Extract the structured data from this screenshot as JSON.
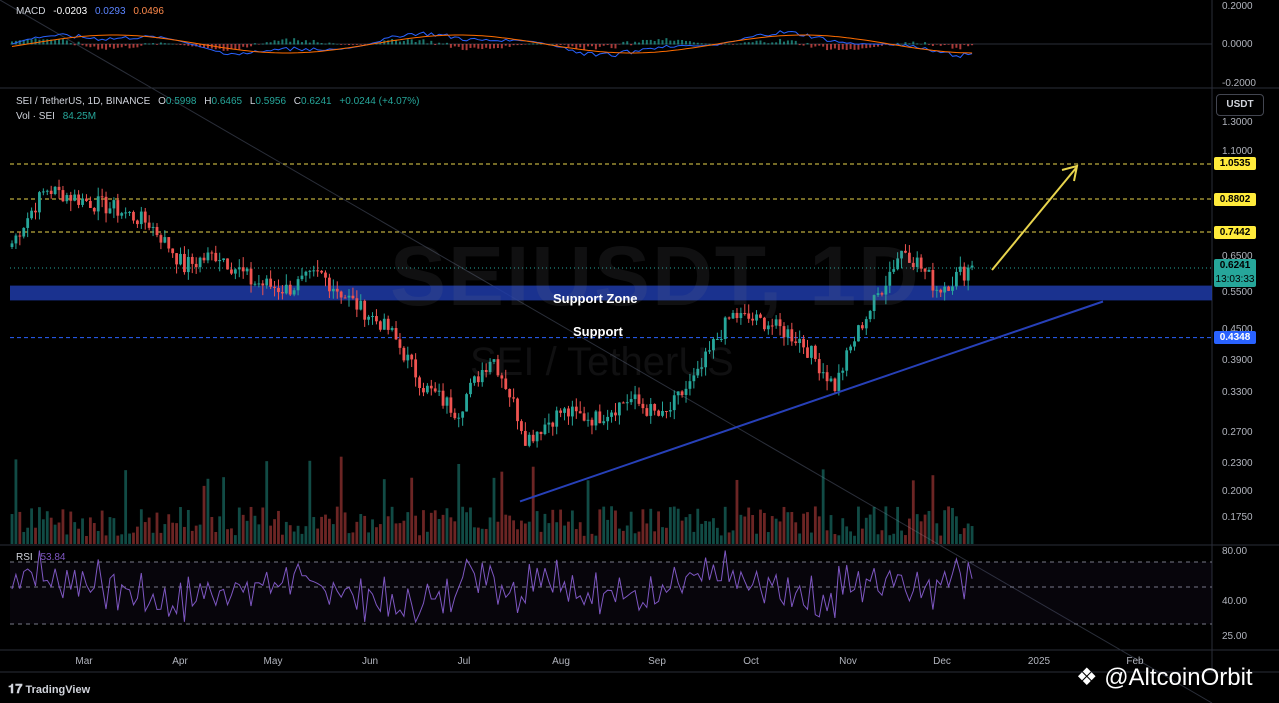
{
  "macd": {
    "name": "MACD",
    "v1": "-0.0203",
    "v2": "0.0293",
    "v3": "0.0496",
    "axis": [
      "0.2000",
      "0.0000",
      "-0.2000"
    ]
  },
  "header": {
    "symbol": "SEI / TetherUS, 1D, BINANCE",
    "o_label": "O",
    "o": "0.5998",
    "h_label": "H",
    "h": "0.6465",
    "l_label": "L",
    "l": "0.5956",
    "c_label": "C",
    "c": "0.6241",
    "change": "+0.0244 (+4.07%)",
    "vol_label": "Vol · SEI",
    "vol": "84.25M"
  },
  "currency_button": "USDT",
  "watermark": {
    "ticker": "SEIUSDT, 1D",
    "pair": "SEI / TetherUS"
  },
  "price_axis": [
    "1.3000",
    "1.1000",
    "0.6500",
    "0.5500",
    "0.4500",
    "0.3900",
    "0.3300",
    "0.2700",
    "0.2300",
    "0.2000",
    "0.1750"
  ],
  "levels": {
    "l1": "1.0535",
    "l2": "0.8802",
    "l3": "0.7442",
    "current": "0.6241",
    "countdown": "13:03:33",
    "support": "0.4348"
  },
  "annotations": {
    "zone": "Support Zone",
    "support": "Support"
  },
  "rsi": {
    "name": "RSI",
    "value": "53.84",
    "axis": [
      "80.00",
      "40.00",
      "25.00"
    ]
  },
  "time_axis": [
    "Mar",
    "Apr",
    "May",
    "Jun",
    "Jul",
    "Aug",
    "Sep",
    "Oct",
    "Nov",
    "Dec",
    "2025",
    "Feb"
  ],
  "footer": {
    "brand": "TradingView",
    "handle": "@AltcoinOrbit"
  },
  "colors": {
    "up": "#26a69a",
    "down": "#ef5350",
    "zone": "#1e3ba8",
    "trend": "#2740b8",
    "arrow": "#e8d44d",
    "rsi": "#7e57c2",
    "macd": "#2962ff",
    "signal": "#ff6d00"
  },
  "chart_data": {
    "type": "candlestick",
    "title": "SEI / TetherUS, 1D, BINANCE",
    "ylim": [
      0.15,
      1.35
    ],
    "x": [
      "Mar",
      "Mar",
      "Mar",
      "Apr",
      "Apr",
      "Apr",
      "May",
      "May",
      "May",
      "Jun",
      "Jun",
      "Jun",
      "Jul",
      "Jul",
      "Jul",
      "Aug",
      "Aug",
      "Aug",
      "Sep",
      "Sep",
      "Sep",
      "Oct",
      "Oct",
      "Oct",
      "Nov",
      "Nov",
      "Nov",
      "Dec",
      "Dec"
    ],
    "close": [
      0.7,
      0.93,
      0.88,
      0.84,
      0.78,
      0.62,
      0.66,
      0.58,
      0.56,
      0.6,
      0.52,
      0.45,
      0.34,
      0.3,
      0.4,
      0.26,
      0.3,
      0.29,
      0.32,
      0.29,
      0.36,
      0.49,
      0.47,
      0.43,
      0.34,
      0.5,
      0.68,
      0.56,
      0.6241
    ],
    "support_zone": [
      0.53,
      0.57
    ],
    "support_line": 0.4348,
    "resistance_levels": [
      1.0535,
      0.8802,
      0.7442
    ],
    "trendline": {
      "from": [
        "Jul",
        0.19
      ],
      "to": [
        "Dec",
        0.5
      ]
    },
    "rsi_last": 53.84,
    "volume_last": "84.25M"
  }
}
